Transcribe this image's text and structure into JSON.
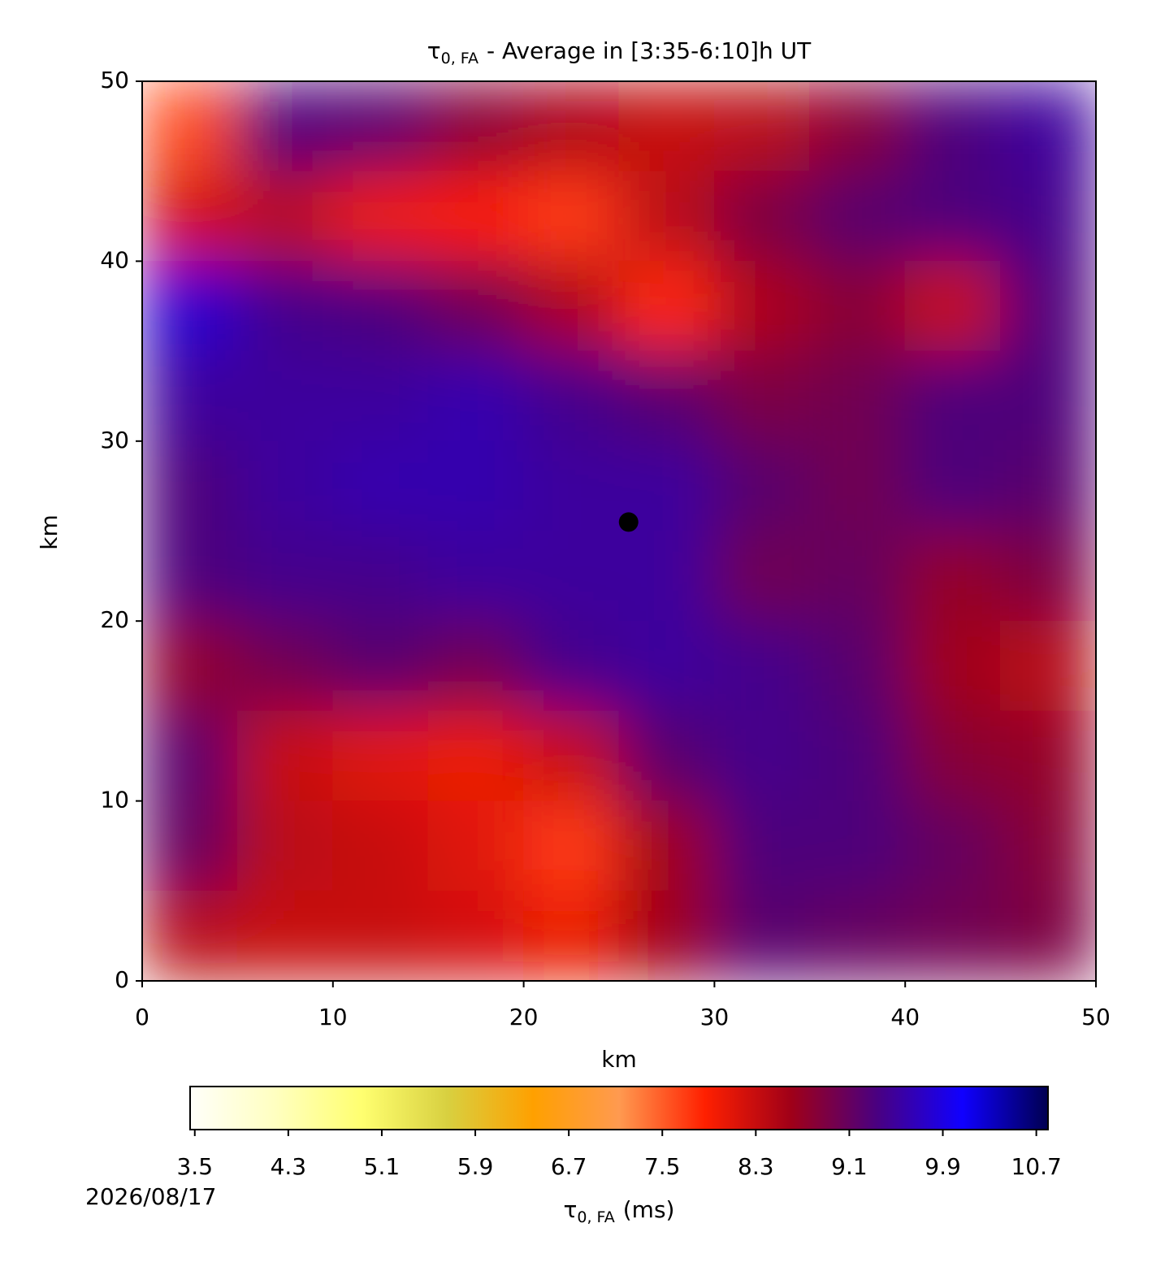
{
  "chart_data": {
    "type": "heatmap",
    "title": {
      "symbol": "τ",
      "subscript": "0, FA",
      "text": "- Average in [3:35-6:10]h UT"
    },
    "xlabel": "km",
    "ylabel": "km",
    "xlim": [
      0,
      50
    ],
    "ylim": [
      0,
      50
    ],
    "xticks": [
      0,
      10,
      20,
      30,
      40,
      50
    ],
    "yticks": [
      0,
      10,
      20,
      30,
      40,
      50
    ],
    "x": [
      2.5,
      7.5,
      12.5,
      17.5,
      22.5,
      27.5,
      32.5,
      37.5,
      42.5,
      47.5
    ],
    "y": [
      47.5,
      42.5,
      37.5,
      32.5,
      27.5,
      22.5,
      17.5,
      12.5,
      7.5,
      2.5
    ],
    "z": [
      [
        7.6,
        9.3,
        9.2,
        8.8,
        8.5,
        8.3,
        8.4,
        8.8,
        9.3,
        9.5
      ],
      [
        8.2,
        8.4,
        8.0,
        7.9,
        7.7,
        8.4,
        8.9,
        9.2,
        9.3,
        9.4
      ],
      [
        9.8,
        9.4,
        9.3,
        9.0,
        8.5,
        7.8,
        8.5,
        8.8,
        8.3,
        9.3
      ],
      [
        9.5,
        9.5,
        9.5,
        9.6,
        9.4,
        9.2,
        8.9,
        9.0,
        9.3,
        9.3
      ],
      [
        9.3,
        9.5,
        9.6,
        9.6,
        9.5,
        9.5,
        9.2,
        9.0,
        9.3,
        9.2
      ],
      [
        9.3,
        9.4,
        9.4,
        9.5,
        9.5,
        9.5,
        9.0,
        9.1,
        8.7,
        8.9
      ],
      [
        8.7,
        9.0,
        9.2,
        9.0,
        9.4,
        9.5,
        9.4,
        9.2,
        8.6,
        8.4
      ],
      [
        9.2,
        8.3,
        8.1,
        8.0,
        8.3,
        9.2,
        9.4,
        9.3,
        8.8,
        8.7
      ],
      [
        9.1,
        8.4,
        8.3,
        8.1,
        7.7,
        8.6,
        9.3,
        9.3,
        9.1,
        8.8
      ],
      [
        8.4,
        8.3,
        8.3,
        8.2,
        8.0,
        8.6,
        9.2,
        9.1,
        9.0,
        8.9
      ]
    ],
    "marker": {
      "x": 25.5,
      "y": 25.5,
      "color": "#000000"
    },
    "colormap": [
      "#fffffa",
      "#ffffc0",
      "#ffff70",
      "#d8d040",
      "#ffa000",
      "#ff9a50",
      "#ff2000",
      "#a00018",
      "#4a0080",
      "#1000ff",
      "#000050"
    ],
    "clim": [
      3.46,
      10.8
    ],
    "cticks": [
      3.5,
      4.3,
      5.1,
      5.9,
      6.7,
      7.5,
      8.3,
      9.1,
      9.9,
      10.7
    ],
    "clabel": {
      "symbol": "τ",
      "subscript": "0, FA",
      "text": "(ms)"
    },
    "date": "2026/08/17"
  }
}
